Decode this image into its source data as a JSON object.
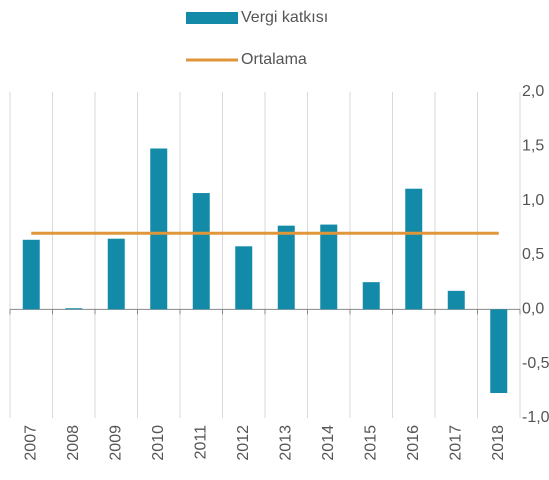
{
  "chart_data": {
    "type": "bar",
    "categories": [
      "2007",
      "2008",
      "2009",
      "2010",
      "2011",
      "2012",
      "2013",
      "2014",
      "2015",
      "2016",
      "2017",
      "2018"
    ],
    "series": [
      {
        "name": "Vergi katkısı",
        "color": "#138ba8",
        "values": [
          0.64,
          0.01,
          0.65,
          1.48,
          1.07,
          0.58,
          0.77,
          0.78,
          0.25,
          1.11,
          0.17,
          -0.77
        ]
      },
      {
        "name": "Ortalama",
        "type": "line",
        "color": "#e0963a",
        "values": [
          0.7,
          0.7,
          0.7,
          0.7,
          0.7,
          0.7,
          0.7,
          0.7,
          0.7,
          0.7,
          0.7,
          0.7
        ]
      }
    ],
    "ylim": [
      -1.0,
      2.0
    ],
    "yticks": [
      {
        "value": 2.0,
        "label": "2,0"
      },
      {
        "value": 1.5,
        "label": "1,5"
      },
      {
        "value": 1.0,
        "label": "1,0"
      },
      {
        "value": 0.5,
        "label": "0,5"
      },
      {
        "value": 0.0,
        "label": "0,0"
      },
      {
        "value": -0.5,
        "label": "-0,5"
      },
      {
        "value": -1.0,
        "label": "-1,0"
      }
    ],
    "grid": false
  }
}
